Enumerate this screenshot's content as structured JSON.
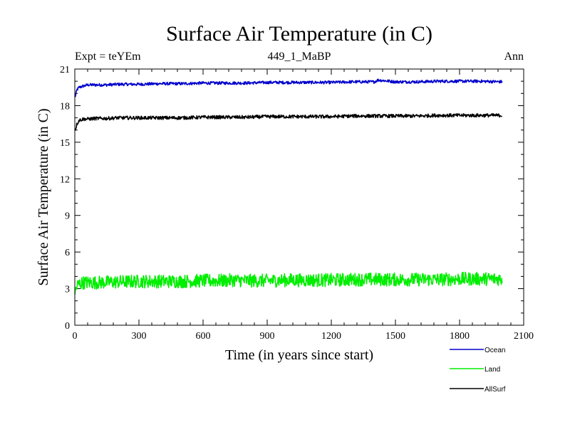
{
  "chart_data": {
    "type": "line",
    "title": "Surface Air Temperature (in C)",
    "subtitle": "449_1_MaBP",
    "left_label": "Expt = teYEm",
    "right_label": "Ann",
    "xlabel": "Time (in years since start)",
    "ylabel": "Surface Air Temperature (in C)",
    "xlim": [
      0,
      2100
    ],
    "ylim": [
      0,
      21
    ],
    "xticks": [
      0,
      300,
      600,
      900,
      1200,
      1500,
      1800,
      2100
    ],
    "yticks": [
      0,
      3,
      6,
      9,
      12,
      15,
      18,
      21
    ],
    "legend_position": "bottom-right",
    "series": [
      {
        "name": "Ocean",
        "color": "#0000cc",
        "x": [
          0,
          10,
          20,
          40,
          60,
          100,
          150,
          200,
          300,
          400,
          500,
          600,
          700,
          800,
          900,
          1000,
          1100,
          1200,
          1300,
          1400,
          1420,
          1500,
          1600,
          1700,
          1800,
          1900,
          2000
        ],
        "values": [
          18.6,
          19.3,
          19.5,
          19.6,
          19.7,
          19.7,
          19.7,
          19.75,
          19.75,
          19.8,
          19.8,
          19.85,
          19.85,
          19.85,
          19.9,
          19.9,
          19.9,
          19.9,
          19.95,
          19.95,
          20.1,
          19.95,
          19.95,
          20.0,
          20.0,
          20.0,
          19.95
        ]
      },
      {
        "name": "Land",
        "color": "#00ee00",
        "x": [
          0,
          10,
          20,
          40,
          60,
          100,
          200,
          300,
          400,
          500,
          600,
          700,
          740,
          800,
          900,
          1000,
          1100,
          1200,
          1300,
          1400,
          1500,
          1600,
          1700,
          1800,
          1900,
          2000
        ],
        "values": [
          2.6,
          3.2,
          3.4,
          3.5,
          3.5,
          3.5,
          3.55,
          3.6,
          3.6,
          3.6,
          3.65,
          3.65,
          3.7,
          3.65,
          3.65,
          3.7,
          3.7,
          3.7,
          3.75,
          3.75,
          3.75,
          3.75,
          3.75,
          3.8,
          3.8,
          3.8
        ]
      },
      {
        "name": "AllSurf",
        "color": "#000000",
        "x": [
          0,
          10,
          20,
          40,
          60,
          100,
          150,
          200,
          300,
          400,
          500,
          600,
          700,
          800,
          900,
          1000,
          1100,
          1200,
          1300,
          1400,
          1500,
          1600,
          1700,
          1800,
          1900,
          2000
        ],
        "values": [
          15.9,
          16.5,
          16.8,
          16.9,
          16.9,
          16.95,
          16.95,
          17.0,
          17.0,
          17.0,
          17.0,
          17.05,
          17.05,
          17.05,
          17.1,
          17.1,
          17.1,
          17.1,
          17.15,
          17.15,
          17.15,
          17.15,
          17.2,
          17.2,
          17.2,
          17.2
        ]
      }
    ],
    "noise_amplitude": [
      0.12,
      0.55,
      0.14
    ]
  }
}
